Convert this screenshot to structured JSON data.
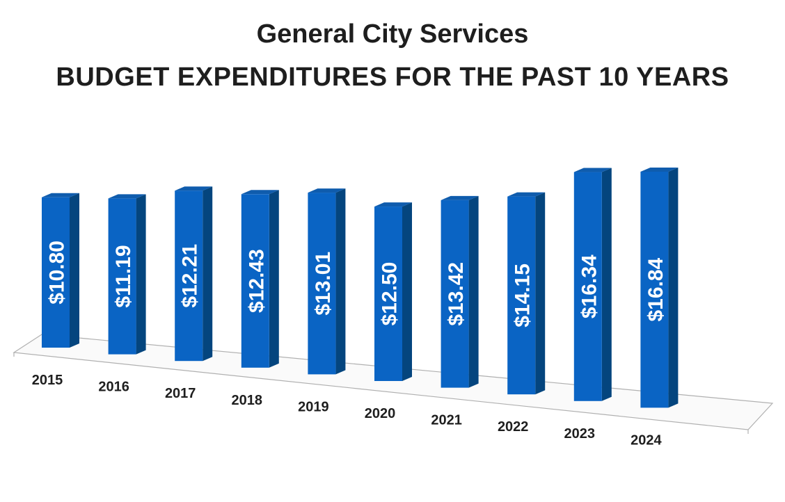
{
  "title": "General City Services",
  "subtitle": "BUDGET EXPENDITURES FOR THE PAST 10 YEARS",
  "chart_data": {
    "type": "bar",
    "title": "General City Services",
    "subtitle": "BUDGET EXPENDITURES FOR THE PAST 10 YEARS",
    "categories": [
      "2015",
      "2016",
      "2017",
      "2018",
      "2019",
      "2020",
      "2021",
      "2022",
      "2023",
      "2024"
    ],
    "values": [
      10.8,
      11.19,
      12.21,
      12.43,
      13.01,
      12.5,
      13.42,
      14.15,
      16.34,
      16.84
    ],
    "data_labels": [
      "$10.80",
      "$11.19",
      "$12.21",
      "$12.43",
      "$13.01",
      "$12.50",
      "$13.42",
      "$14.15",
      "$16.34",
      "$16.84"
    ],
    "xlabel": "",
    "ylabel": "",
    "grid": false,
    "legend": "none",
    "colors": {
      "front": "#0a64c4",
      "side": "#04457e",
      "top": "#0f5cad",
      "floor_line": "#b0b0b0"
    }
  }
}
